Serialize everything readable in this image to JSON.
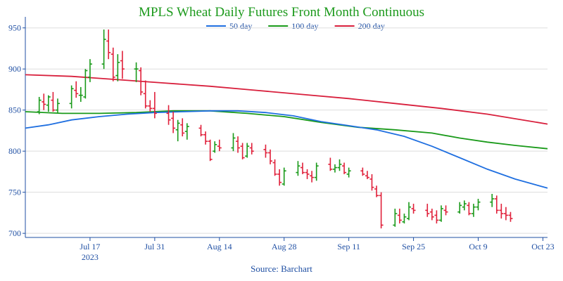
{
  "chart_data": {
    "type": "ohlc",
    "title": "MPLS Wheat Daily Futures Front Month Continuous",
    "source": "Source: Barchart",
    "colors": {
      "up": "#1a9a1a",
      "down": "#e0203a",
      "sma50": "#1f6fe0",
      "sma100": "#1a9a1a",
      "sma200": "#d81f3c",
      "axis": "#1f4fa3",
      "grid": "#dddddd"
    },
    "y_axis": {
      "min": 695,
      "max": 960,
      "ticks": [
        700,
        750,
        800,
        850,
        900,
        950
      ]
    },
    "x_axis": {
      "min_day": 0,
      "max_day": 113,
      "ticks": [
        {
          "day": 14,
          "label": "Jul 17",
          "sublabel": "2023"
        },
        {
          "day": 28,
          "label": "Jul 31",
          "sublabel": ""
        },
        {
          "day": 42,
          "label": "Aug 14",
          "sublabel": ""
        },
        {
          "day": 56,
          "label": "Aug 28",
          "sublabel": ""
        },
        {
          "day": 70,
          "label": "Sep 11",
          "sublabel": ""
        },
        {
          "day": 84,
          "label": "Sep 25",
          "sublabel": ""
        },
        {
          "day": 98,
          "label": "Oct 9",
          "sublabel": ""
        },
        {
          "day": 112,
          "label": "Oct 23",
          "sublabel": ""
        }
      ]
    },
    "legend": [
      {
        "name": "50 day",
        "color": "#1f6fe0"
      },
      {
        "name": "100 day",
        "color": "#1a9a1a"
      },
      {
        "name": "200 day",
        "color": "#d81f3c"
      }
    ],
    "ohlc": [
      [
        3,
        848,
        866,
        845,
        862
      ],
      [
        4,
        860,
        870,
        850,
        857
      ],
      [
        5,
        856,
        868,
        848,
        866
      ],
      [
        6,
        862,
        872,
        848,
        850
      ],
      [
        7,
        850,
        864,
        846,
        858
      ],
      [
        10,
        858,
        880,
        852,
        876
      ],
      [
        11,
        874,
        885,
        865,
        870
      ],
      [
        12,
        868,
        878,
        860,
        868
      ],
      [
        13,
        866,
        900,
        864,
        898
      ],
      [
        14,
        890,
        912,
        884,
        906
      ],
      [
        17,
        906,
        948,
        900,
        936
      ],
      [
        18,
        934,
        948,
        912,
        920
      ],
      [
        19,
        918,
        926,
        885,
        890
      ],
      [
        20,
        892,
        918,
        885,
        908
      ],
      [
        21,
        910,
        922,
        888,
        900
      ],
      [
        24,
        900,
        908,
        884,
        900
      ],
      [
        25,
        898,
        902,
        868,
        872
      ],
      [
        26,
        870,
        886,
        852,
        855
      ],
      [
        27,
        855,
        862,
        848,
        852
      ],
      [
        28,
        852,
        872,
        840,
        846
      ],
      [
        31,
        846,
        856,
        832,
        838
      ],
      [
        32,
        840,
        848,
        822,
        828
      ],
      [
        33,
        826,
        838,
        812,
        834
      ],
      [
        34,
        832,
        840,
        818,
        822
      ],
      [
        35,
        824,
        834,
        814,
        830
      ],
      [
        38,
        828,
        832,
        818,
        820
      ],
      [
        39,
        820,
        824,
        808,
        812
      ],
      [
        40,
        812,
        814,
        788,
        790
      ],
      [
        41,
        800,
        812,
        798,
        808
      ],
      [
        42,
        806,
        814,
        800,
        804
      ],
      [
        45,
        804,
        822,
        800,
        816
      ],
      [
        46,
        812,
        818,
        798,
        804
      ],
      [
        47,
        806,
        810,
        790,
        792
      ],
      [
        48,
        794,
        810,
        792,
        806
      ],
      [
        49,
        804,
        810,
        796,
        800
      ],
      [
        52,
        802,
        808,
        792,
        798
      ],
      [
        53,
        798,
        802,
        784,
        788
      ],
      [
        54,
        786,
        790,
        770,
        772
      ],
      [
        55,
        772,
        778,
        758,
        762
      ],
      [
        56,
        760,
        780,
        758,
        776
      ],
      [
        59,
        774,
        788,
        770,
        782
      ],
      [
        60,
        780,
        786,
        772,
        774
      ],
      [
        61,
        774,
        778,
        766,
        772
      ],
      [
        62,
        770,
        776,
        762,
        768
      ],
      [
        63,
        768,
        786,
        764,
        782
      ],
      [
        66,
        784,
        792,
        776,
        778
      ],
      [
        67,
        778,
        784,
        774,
        780
      ],
      [
        68,
        780,
        790,
        776,
        784
      ],
      [
        69,
        782,
        786,
        772,
        774
      ],
      [
        70,
        772,
        780,
        768,
        776
      ],
      [
        73,
        776,
        780,
        770,
        772
      ],
      [
        74,
        770,
        776,
        766,
        768
      ],
      [
        75,
        766,
        772,
        752,
        756
      ],
      [
        76,
        754,
        758,
        744,
        746
      ],
      [
        77,
        746,
        750,
        706,
        710
      ],
      [
        80,
        710,
        730,
        708,
        724
      ],
      [
        81,
        722,
        730,
        712,
        716
      ],
      [
        82,
        714,
        724,
        712,
        720
      ],
      [
        83,
        718,
        738,
        716,
        732
      ],
      [
        84,
        730,
        736,
        724,
        728
      ],
      [
        87,
        728,
        736,
        720,
        724
      ],
      [
        88,
        726,
        730,
        716,
        720
      ],
      [
        89,
        722,
        728,
        712,
        716
      ],
      [
        90,
        716,
        734,
        714,
        730
      ],
      [
        91,
        728,
        734,
        722,
        726
      ],
      [
        94,
        726,
        738,
        724,
        734
      ],
      [
        95,
        732,
        740,
        728,
        736
      ],
      [
        96,
        734,
        738,
        722,
        724
      ],
      [
        97,
        724,
        736,
        720,
        732
      ],
      [
        98,
        732,
        742,
        728,
        738
      ],
      [
        101,
        738,
        748,
        732,
        742
      ],
      [
        102,
        742,
        746,
        724,
        728
      ],
      [
        103,
        728,
        736,
        718,
        724
      ],
      [
        104,
        724,
        732,
        716,
        722
      ],
      [
        105,
        722,
        726,
        714,
        718
      ]
    ],
    "sma50": [
      [
        0,
        828
      ],
      [
        5,
        832
      ],
      [
        10,
        838
      ],
      [
        16,
        842
      ],
      [
        22,
        845
      ],
      [
        28,
        847
      ],
      [
        34,
        848
      ],
      [
        40,
        849
      ],
      [
        46,
        849
      ],
      [
        52,
        847
      ],
      [
        58,
        843
      ],
      [
        64,
        836
      ],
      [
        70,
        831
      ],
      [
        76,
        826
      ],
      [
        82,
        818
      ],
      [
        88,
        806
      ],
      [
        94,
        792
      ],
      [
        100,
        778
      ],
      [
        106,
        766
      ],
      [
        113,
        755
      ]
    ],
    "sma100": [
      [
        0,
        848
      ],
      [
        8,
        846
      ],
      [
        16,
        846
      ],
      [
        24,
        847
      ],
      [
        32,
        849
      ],
      [
        40,
        849
      ],
      [
        48,
        846
      ],
      [
        56,
        842
      ],
      [
        64,
        835
      ],
      [
        72,
        829
      ],
      [
        80,
        826
      ],
      [
        88,
        822
      ],
      [
        94,
        816
      ],
      [
        100,
        811
      ],
      [
        106,
        807
      ],
      [
        113,
        803
      ]
    ],
    "sma200": [
      [
        0,
        893
      ],
      [
        10,
        891
      ],
      [
        20,
        887
      ],
      [
        30,
        883
      ],
      [
        40,
        879
      ],
      [
        50,
        874
      ],
      [
        60,
        869
      ],
      [
        70,
        864
      ],
      [
        80,
        858
      ],
      [
        90,
        852
      ],
      [
        100,
        845
      ],
      [
        113,
        833
      ]
    ]
  }
}
